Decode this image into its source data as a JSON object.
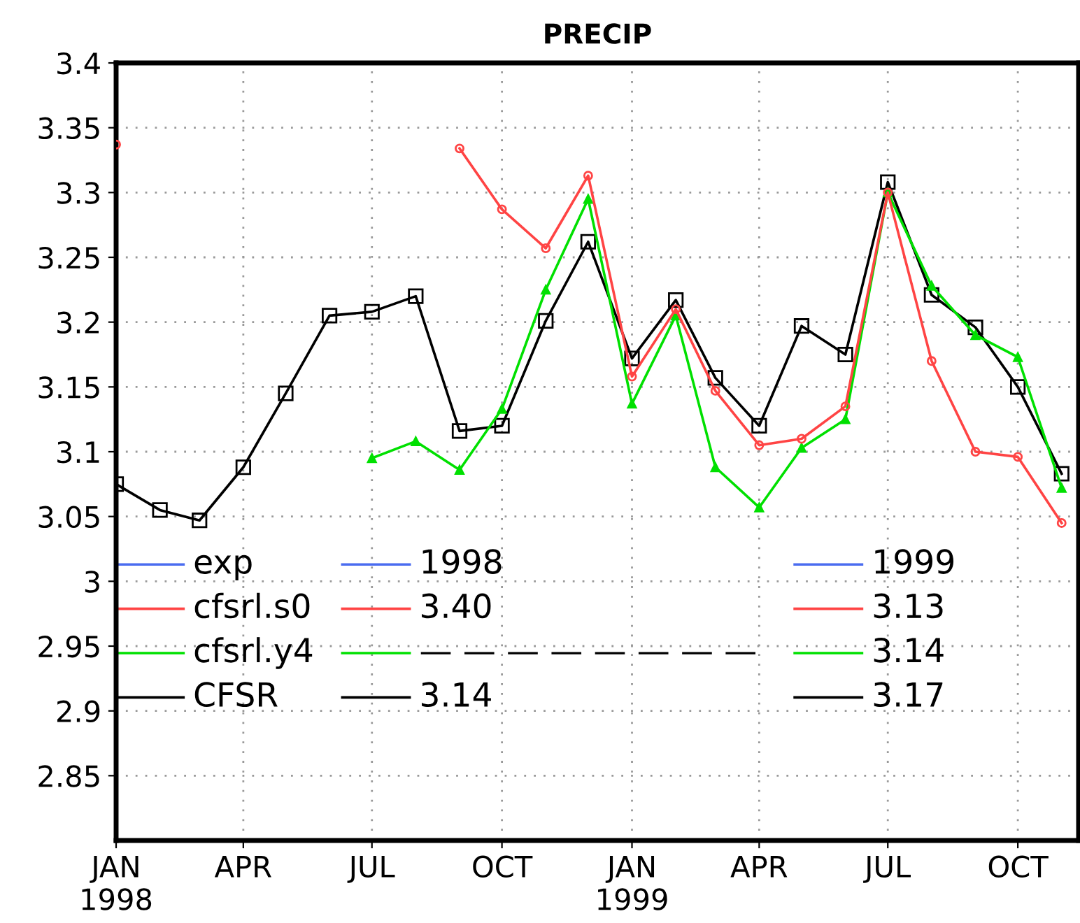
{
  "chart_data": {
    "type": "line",
    "title": "PRECIP",
    "x": [
      "1998-01",
      "1998-02",
      "1998-03",
      "1998-04",
      "1998-05",
      "1998-06",
      "1998-07",
      "1998-08",
      "1998-09",
      "1998-10",
      "1998-11",
      "1998-12",
      "1999-01",
      "1999-02",
      "1999-03",
      "1999-04",
      "1999-05",
      "1999-06",
      "1999-07",
      "1999-08",
      "1999-09",
      "1999-10",
      "1999-11"
    ],
    "series": [
      {
        "name": "exp",
        "color": "#4a6cf0",
        "marker": "none",
        "values": [
          null,
          null,
          null,
          null,
          null,
          null,
          null,
          null,
          null,
          null,
          null,
          null,
          null,
          null,
          null,
          null,
          null,
          null,
          null,
          null,
          null,
          null,
          null
        ]
      },
      {
        "name": "cfsrl.s0",
        "color": "#ff4444",
        "marker": "circle",
        "values": [
          3.337,
          null,
          null,
          null,
          null,
          null,
          null,
          null,
          3.334,
          3.287,
          3.257,
          3.313,
          3.158,
          3.21,
          3.147,
          3.105,
          3.11,
          3.135,
          3.3,
          3.17,
          3.1,
          3.096,
          3.045
        ]
      },
      {
        "name": "cfsrl.y4",
        "color": "#00e000",
        "marker": "triangle",
        "values": [
          null,
          null,
          null,
          null,
          null,
          null,
          3.095,
          3.108,
          3.086,
          3.133,
          3.225,
          3.295,
          3.137,
          3.205,
          3.088,
          3.057,
          3.103,
          3.125,
          3.3,
          3.228,
          3.19,
          3.173,
          3.072
        ]
      },
      {
        "name": "CFSR",
        "color": "#000000",
        "marker": "square",
        "values": [
          3.075,
          3.055,
          3.047,
          3.088,
          3.145,
          3.205,
          3.208,
          3.22,
          3.116,
          3.12,
          3.201,
          3.262,
          3.172,
          3.217,
          3.157,
          3.12,
          3.197,
          3.175,
          3.308,
          3.221,
          3.196,
          3.15,
          3.083
        ]
      }
    ],
    "annotations": [
      "1998",
      "1999",
      "3.40",
      "3.13",
      "— — — — — — — —",
      "3.14",
      "3.14",
      "3.17"
    ],
    "xlim": [
      "1998-01",
      "1999-11-13"
    ],
    "xticks": [
      {
        "value": "1998-01",
        "label": "JAN\n1998"
      },
      {
        "value": "1998-04",
        "label": "APR"
      },
      {
        "value": "1998-07",
        "label": "JUL"
      },
      {
        "value": "1998-10",
        "label": "OCT"
      },
      {
        "value": "1999-01",
        "label": "JAN\n1999"
      },
      {
        "value": "1999-04",
        "label": "APR"
      },
      {
        "value": "1999-07",
        "label": "JUL"
      },
      {
        "value": "1999-10",
        "label": "OCT"
      }
    ],
    "ylim": [
      2.8,
      3.4
    ],
    "yticks": [
      2.85,
      2.9,
      2.95,
      3,
      3.05,
      3.1,
      3.15,
      3.2,
      3.25,
      3.3,
      3.35,
      3.4
    ],
    "grid": true,
    "legend": "bottom left",
    "line_style": "solid"
  }
}
